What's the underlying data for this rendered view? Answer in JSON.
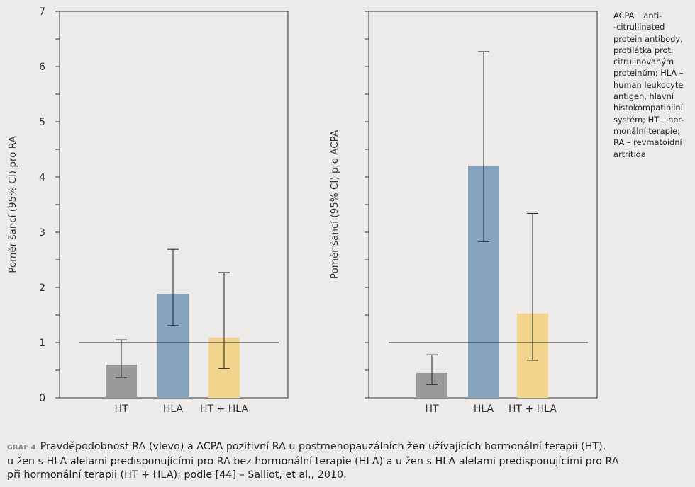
{
  "chart_data": [
    {
      "type": "bar",
      "ylabel": "Poměr šancí (95% CI) pro RA",
      "categories": [
        "HT",
        "HLA",
        "HT + HLA"
      ],
      "values": [
        0.6,
        1.88,
        1.09
      ],
      "ci_low": [
        0.37,
        1.31,
        0.53
      ],
      "ci_high": [
        1.05,
        2.69,
        2.27
      ],
      "colors": [
        "#9a9a9a",
        "#87a4c0",
        "#f3d48d"
      ],
      "reference_line": 1,
      "ylim": [
        0,
        7
      ],
      "yticks": [
        "0",
        "1",
        "2",
        "3",
        "4",
        "5",
        "6",
        "7"
      ]
    },
    {
      "type": "bar",
      "ylabel": "Poměr šancí (95% CI) pro ACPA",
      "categories": [
        "HT",
        "HLA",
        "HT + HLA"
      ],
      "values": [
        0.45,
        4.2,
        1.53
      ],
      "ci_low": [
        0.24,
        2.83,
        0.68
      ],
      "ci_high": [
        0.78,
        6.27,
        3.34
      ],
      "colors": [
        "#9a9a9a",
        "#87a4c0",
        "#f3d48d"
      ],
      "reference_line": 1,
      "ylim": [
        0,
        7
      ]
    }
  ],
  "legend_lines": [
    "ACPA – anti-",
    "-citrullinated",
    "protein antibody,",
    "protilátka proti",
    "citrulinovaným",
    "proteinům; HLA –",
    "human leukocyte",
    "antigen, hlavní",
    "histokompatibilní",
    "systém; HT – hor-",
    "monální terapie;",
    "RA – revmatoidní",
    "artritida"
  ],
  "caption": {
    "tag": "GRAF 4",
    "line1": "Pravděpodobnost RA (vlevo) a ACPA pozitivní RA u postmenopauzálních žen užívajících hormonální terapii (HT),",
    "line2": "u žen s HLA alelami predisponujícími pro RA bez hormonální terapie (HLA) a u žen s HLA alelami predisponujícími pro RA",
    "line3": "při hormonální terapii (HT + HLA); podle [44] – Salliot, et al., 2010."
  }
}
